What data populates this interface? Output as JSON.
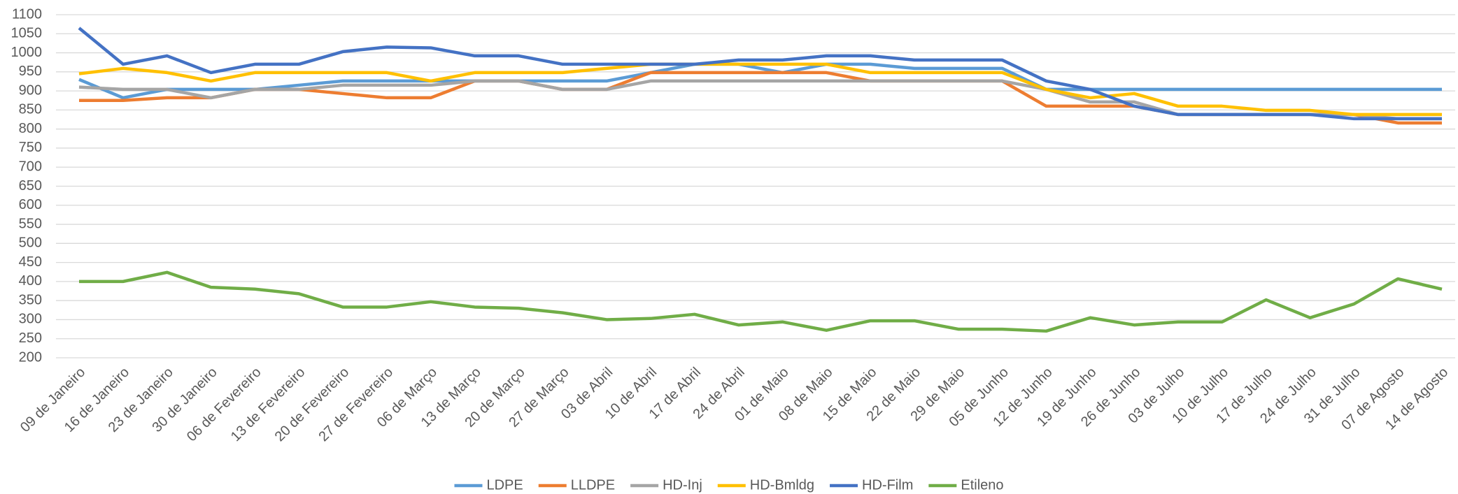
{
  "chart_data": {
    "type": "line",
    "categories": [
      "09 de Janeiro",
      "16 de Janeiro",
      "23 de Janeiro",
      "30 de Janeiro",
      "06 de Fevereiro",
      "13 de Fevereiro",
      "20 de Fevereiro",
      "27 de Fevereiro",
      "06 de Março",
      "13 de Março",
      "20 de Março",
      "27 de Março",
      "03 de Abril",
      "10 de Abril",
      "17 de Abril",
      "24 de Abril",
      "01 de Maio",
      "08 de Maio",
      "15 de Maio",
      "22 de Maio",
      "29 de Maio",
      "05 de Junho",
      "12 de Junho",
      "19 de Junho",
      "26 de Junho",
      "03 de Julho",
      "10 de Julho",
      "17 de Julho",
      "24 de Julho",
      "31 de Julho",
      "07 de Agosto",
      "14 de Agosto"
    ],
    "series": [
      {
        "name": "LDPE",
        "color": "#5b9bd5",
        "values": [
          930,
          882,
          904,
          904,
          904,
          915,
          926,
          926,
          926,
          926,
          926,
          926,
          926,
          948,
          970,
          970,
          948,
          970,
          970,
          959,
          959,
          959,
          904,
          904,
          904,
          904,
          904,
          904,
          904,
          904,
          904,
          904
        ]
      },
      {
        "name": "LLDPE",
        "color": "#ed7d31",
        "values": [
          875,
          875,
          882,
          882,
          904,
          904,
          893,
          882,
          882,
          926,
          926,
          904,
          904,
          948,
          948,
          948,
          948,
          948,
          926,
          926,
          926,
          926,
          860,
          860,
          860,
          838,
          838,
          838,
          838,
          838,
          816,
          816
        ]
      },
      {
        "name": "HD-Inj",
        "color": "#a5a5a5",
        "values": [
          910,
          904,
          904,
          882,
          904,
          904,
          915,
          915,
          915,
          926,
          926,
          904,
          904,
          926,
          926,
          926,
          926,
          926,
          926,
          926,
          926,
          926,
          904,
          871,
          871,
          838,
          838,
          838,
          838,
          838,
          827,
          827
        ]
      },
      {
        "name": "HD-Bmldg",
        "color": "#ffc000",
        "values": [
          945,
          959,
          948,
          926,
          948,
          948,
          948,
          948,
          926,
          948,
          948,
          948,
          959,
          970,
          970,
          970,
          970,
          970,
          948,
          948,
          948,
          948,
          904,
          882,
          893,
          860,
          860,
          849,
          849,
          838,
          838,
          838
        ]
      },
      {
        "name": "HD-Film",
        "color": "#4472c4",
        "values": [
          1065,
          970,
          992,
          948,
          970,
          970,
          1003,
          1015,
          1013,
          992,
          992,
          970,
          970,
          970,
          970,
          981,
          981,
          992,
          992,
          981,
          981,
          981,
          926,
          904,
          860,
          838,
          838,
          838,
          838,
          827,
          827,
          827
        ]
      },
      {
        "name": "Etileno",
        "color": "#70ad47",
        "values": [
          400,
          400,
          424,
          385,
          380,
          368,
          333,
          333,
          347,
          333,
          330,
          318,
          300,
          303,
          314,
          286,
          294,
          272,
          297,
          297,
          275,
          275,
          270,
          305,
          286,
          294,
          294,
          352,
          305,
          341,
          407,
          380
        ]
      }
    ],
    "ylim": [
      200,
      1100
    ],
    "yticks": [
      200,
      250,
      300,
      350,
      400,
      450,
      500,
      550,
      600,
      650,
      700,
      750,
      800,
      850,
      900,
      950,
      1000,
      1050,
      1100
    ],
    "grid": true,
    "legend": "bottom"
  }
}
